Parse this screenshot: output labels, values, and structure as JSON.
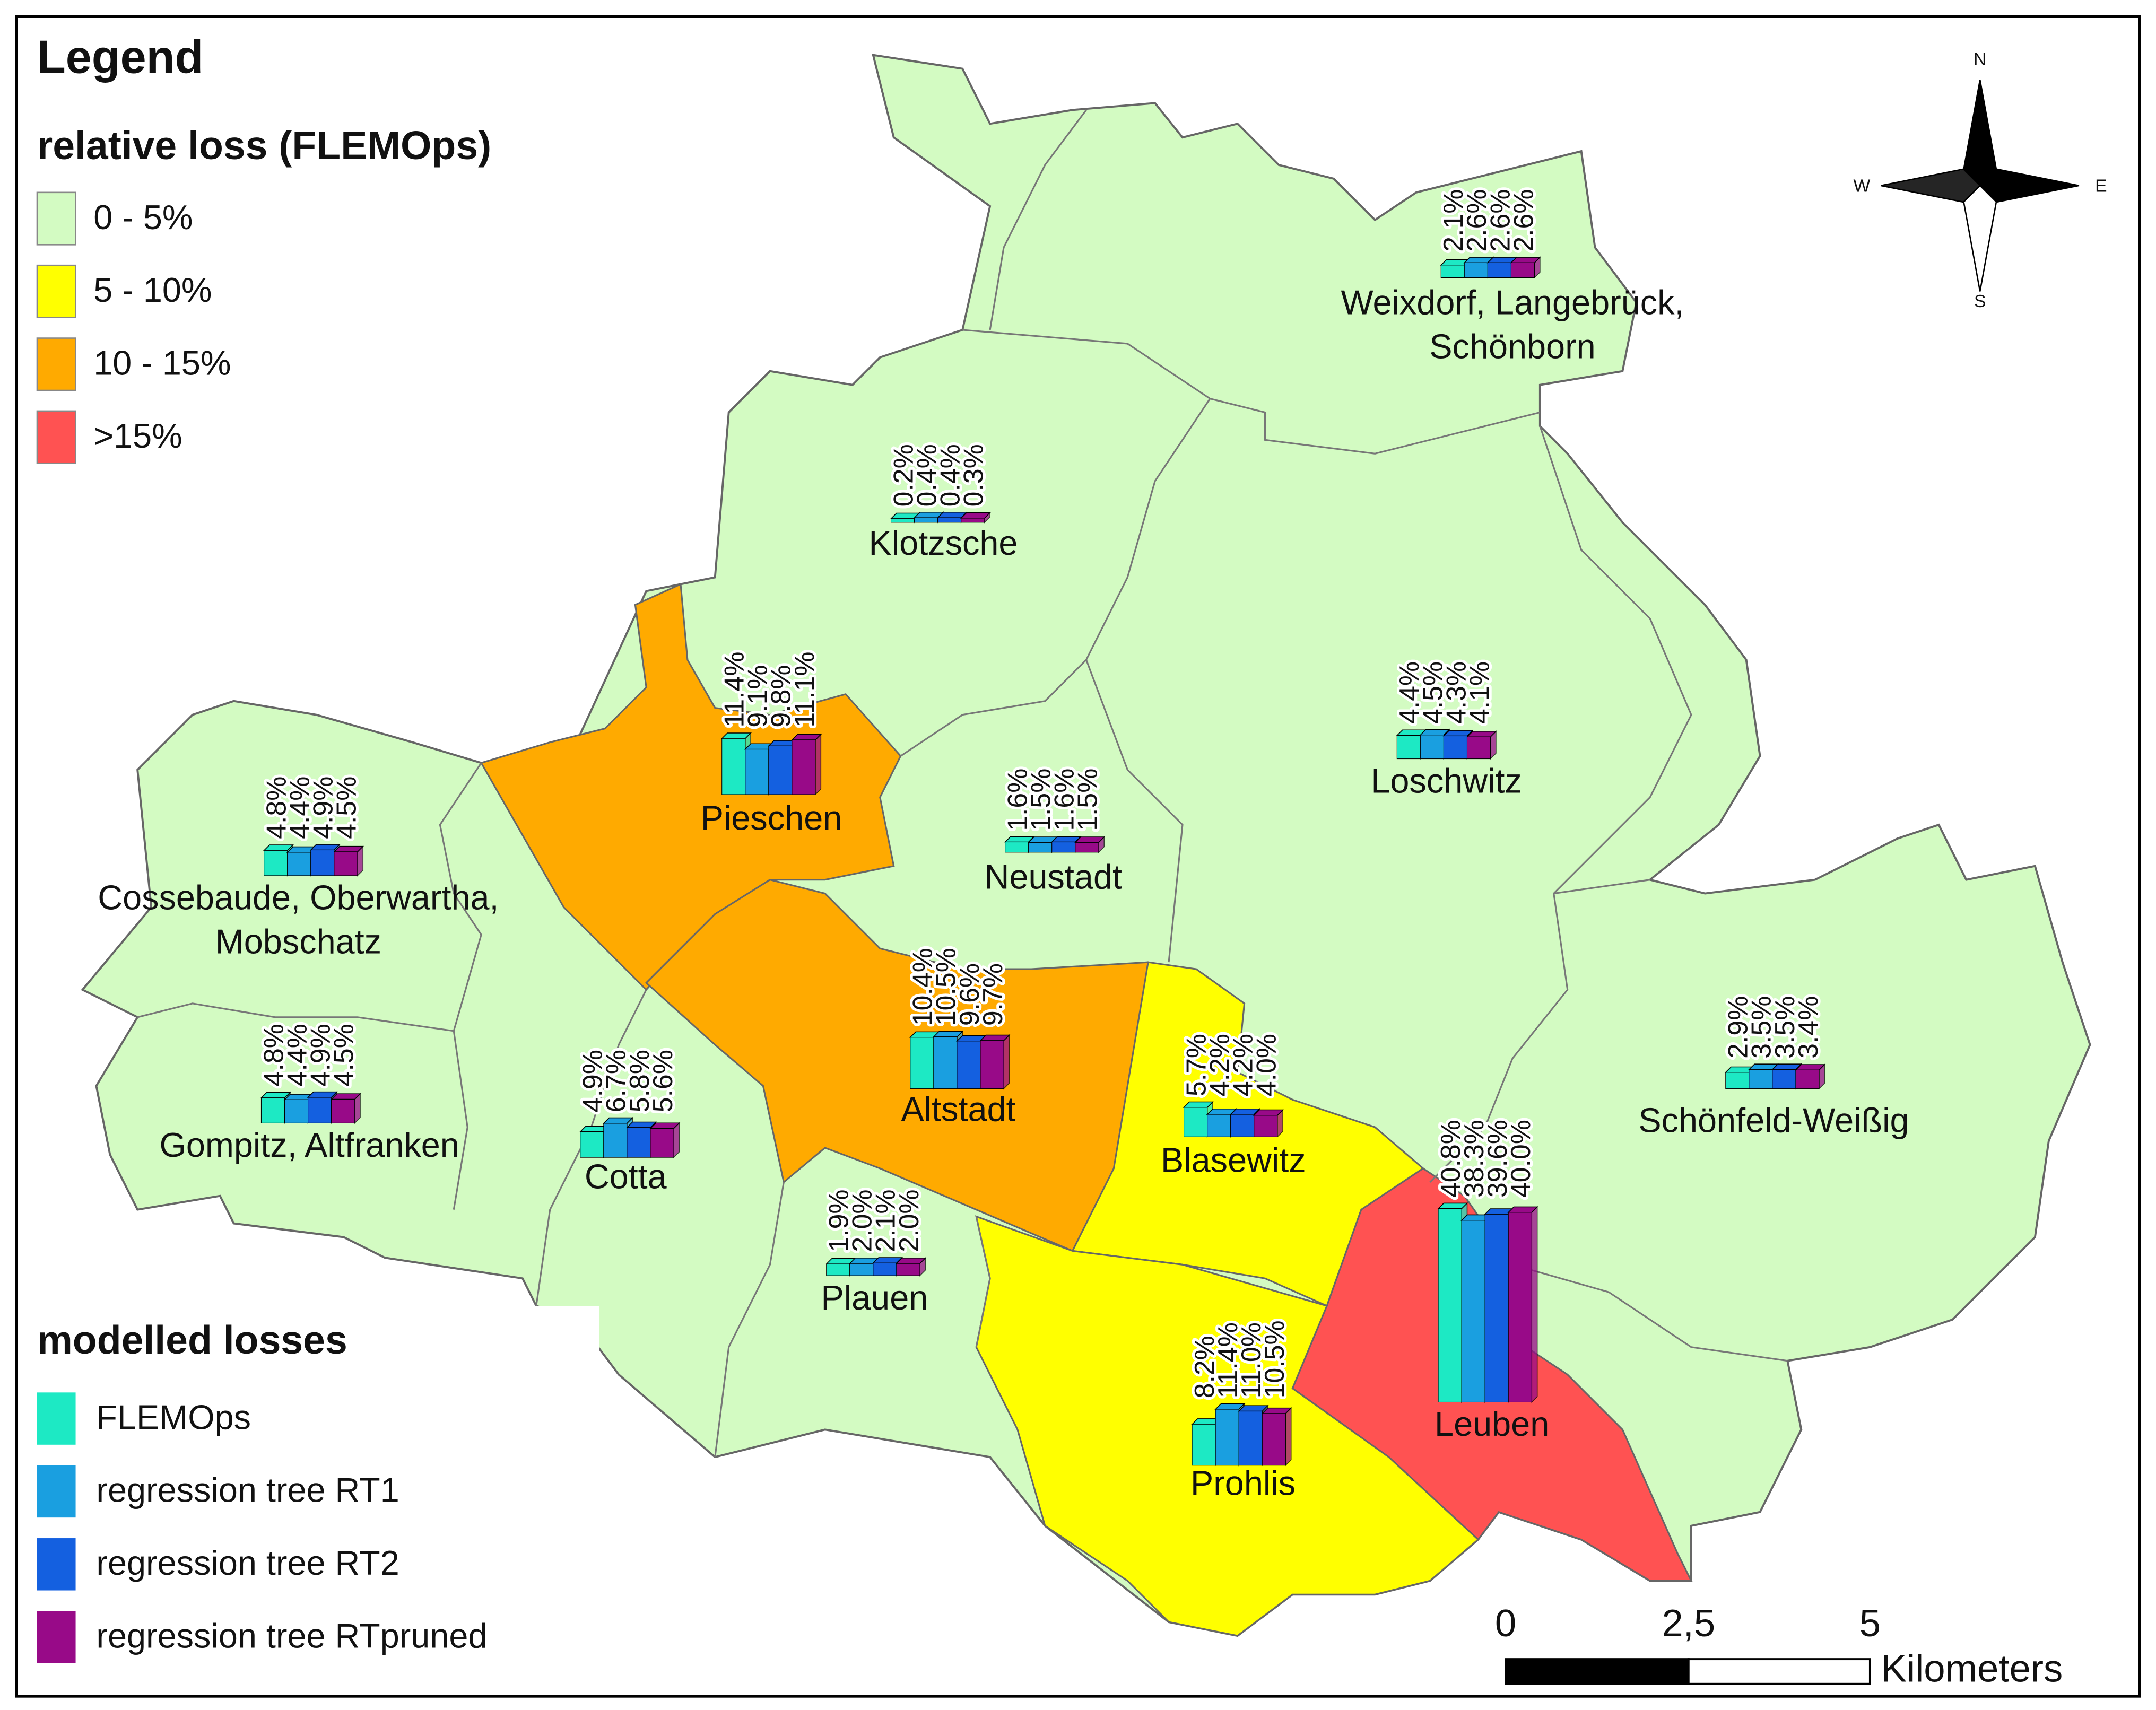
{
  "legend": {
    "title": "Legend",
    "relative_loss": {
      "title": "relative loss (FLEMOps)",
      "classes": [
        {
          "label": "0 - 5%",
          "color": "#d3fbc2"
        },
        {
          "label": "5 - 10%",
          "color": "#ffff00"
        },
        {
          "label": "10 - 15%",
          "color": "#ffaa00"
        },
        {
          "label": ">15%",
          "color": "#ff5252"
        }
      ]
    },
    "modelled_losses": {
      "title": "modelled losses",
      "series": [
        {
          "name": "FLEMOps",
          "color": "#1de9c4"
        },
        {
          "name": "regression tree RT1",
          "color": "#1a9fe0"
        },
        {
          "name": "regression tree RT2",
          "color": "#1460e0"
        },
        {
          "name": "regression tree RTpruned",
          "color": "#980a88"
        }
      ]
    }
  },
  "districts": [
    {
      "name_lines": [
        "Weixdorf, Langebrück,",
        "Schönborn"
      ],
      "loss_class": 0,
      "values": [
        2.1,
        2.6,
        2.6,
        2.6
      ],
      "value_labels": [
        "2.1%",
        "2.6%",
        "2.6%",
        "2.6%"
      ]
    },
    {
      "name_lines": [
        "Klotzsche"
      ],
      "loss_class": 0,
      "values": [
        0.2,
        0.4,
        0.4,
        0.3
      ],
      "value_labels": [
        "0.2%",
        "0.4%",
        "0.4%",
        "0.3%"
      ]
    },
    {
      "name_lines": [
        "Pieschen"
      ],
      "loss_class": 2,
      "values": [
        11.4,
        9.1,
        9.8,
        11.1
      ],
      "value_labels": [
        "11.4%",
        "9.1%",
        "9.8%",
        "11.1%"
      ]
    },
    {
      "name_lines": [
        "Neustadt"
      ],
      "loss_class": 0,
      "values": [
        1.6,
        1.5,
        1.6,
        1.5
      ],
      "value_labels": [
        "1.6%",
        "1.5%",
        "1.6%",
        "1.5%"
      ]
    },
    {
      "name_lines": [
        "Loschwitz"
      ],
      "loss_class": 0,
      "values": [
        4.4,
        4.5,
        4.3,
        4.1
      ],
      "value_labels": [
        "4.4%",
        "4.5%",
        "4.3%",
        "4.1%"
      ]
    },
    {
      "name_lines": [
        "Cossebaude, Oberwartha,",
        "Mobschatz"
      ],
      "loss_class": 0,
      "values": [
        4.8,
        4.4,
        4.9,
        4.5
      ],
      "value_labels": [
        "4.8%",
        "4.4%",
        "4.9%",
        "4.5%"
      ]
    },
    {
      "name_lines": [
        "Gompitz, Altfranken"
      ],
      "loss_class": 0,
      "values": [
        4.8,
        4.4,
        4.9,
        4.5
      ],
      "value_labels": [
        "4.8%",
        "4.4%",
        "4.9%",
        "4.5%"
      ]
    },
    {
      "name_lines": [
        "Cotta"
      ],
      "loss_class": 0,
      "values": [
        4.9,
        6.7,
        5.8,
        5.6
      ],
      "value_labels": [
        "4.9%",
        "6.7%",
        "5.8%",
        "5.6%"
      ]
    },
    {
      "name_lines": [
        "Altstadt"
      ],
      "loss_class": 2,
      "values": [
        10.4,
        10.5,
        9.6,
        9.7
      ],
      "value_labels": [
        "10.4%",
        "10.5%",
        "9.6%",
        "9.7%"
      ]
    },
    {
      "name_lines": [
        "Blasewitz"
      ],
      "loss_class": 1,
      "values": [
        5.7,
        4.2,
        4.2,
        4.0
      ],
      "value_labels": [
        "5.7%",
        "4.2%",
        "4.2%",
        "4.0%"
      ]
    },
    {
      "name_lines": [
        "Plauen"
      ],
      "loss_class": 0,
      "values": [
        1.9,
        2.0,
        2.1,
        2.0
      ],
      "value_labels": [
        "1.9%",
        "2.0%",
        "2.1%",
        "2.0%"
      ]
    },
    {
      "name_lines": [
        "Schönfeld-Weißig"
      ],
      "loss_class": 0,
      "values": [
        2.9,
        3.5,
        3.5,
        3.4
      ],
      "value_labels": [
        "2.9%",
        "3.5%",
        "3.5%",
        "3.4%"
      ]
    },
    {
      "name_lines": [
        "Leuben"
      ],
      "loss_class": 3,
      "values": [
        40.8,
        38.3,
        39.6,
        40.0
      ],
      "value_labels": [
        "40.8%",
        "38.3%",
        "39.6%",
        "40.0%"
      ]
    },
    {
      "name_lines": [
        "Prohlis"
      ],
      "loss_class": 1,
      "values": [
        8.2,
        11.4,
        11.0,
        10.5
      ],
      "value_labels": [
        "8.2%",
        "11.4%",
        "11.0%",
        "10.5%"
      ]
    }
  ],
  "scale_bar": {
    "ticks": [
      "0",
      "2,5",
      "5"
    ],
    "unit": "Kilometers"
  },
  "compass": {
    "north": "N",
    "east": "E",
    "south": "S",
    "west": "W"
  }
}
